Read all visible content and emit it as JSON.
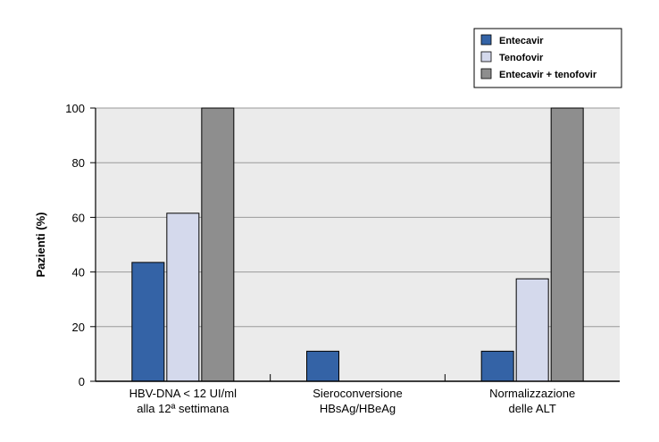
{
  "chart_data": {
    "type": "bar",
    "categories": [
      [
        "HBV-DNA < 12 UI/ml",
        "alla 12ª settimana"
      ],
      [
        "Sieroconversione",
        "HBsAg/HBeAg"
      ],
      [
        "Normalizzazione",
        "delle ALT"
      ]
    ],
    "series": [
      {
        "name": "Entecavir",
        "color": "#3463a6",
        "values": [
          43.5,
          11,
          11
        ]
      },
      {
        "name": "Tenofovir",
        "color": "#d4d9ec",
        "values": [
          61.5,
          0,
          37.5
        ]
      },
      {
        "name": "Entecavir + tenofovir",
        "color": "#8e8e8e",
        "values": [
          100,
          0,
          100
        ]
      }
    ],
    "ylabel": "Pazienti (%)",
    "yticks": [
      0,
      20,
      40,
      60,
      80,
      100
    ],
    "ylim": [
      0,
      100
    ],
    "grid": true,
    "plot_background": "#ebebeb",
    "legend_position": "top-right"
  }
}
